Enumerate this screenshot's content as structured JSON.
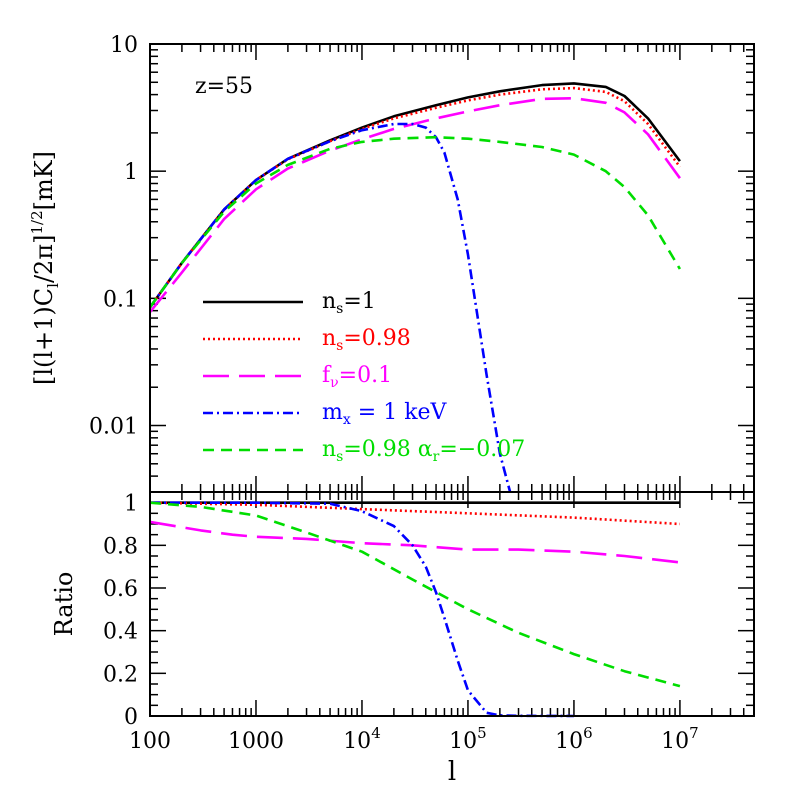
{
  "chart_data": [
    {
      "type": "line",
      "panel": "top",
      "xscale": "log",
      "yscale": "log",
      "xlim": [
        100,
        50000000
      ],
      "ylim": [
        0.003,
        10
      ],
      "ylabel": "[l(l+1)C_l/2π]^{1/2}[mK]",
      "ylabel_parts": {
        "main": "[l(l+1)C",
        "sub": "l",
        "mid": "/2π]",
        "sup": "1/2",
        "end": "[mK]"
      },
      "annotation": "z=55",
      "y_tick_labels": [
        {
          "value": 0.01,
          "label": "0.01"
        },
        {
          "value": 0.1,
          "label": "0.1"
        },
        {
          "value": 1,
          "label": "1"
        },
        {
          "value": 10,
          "label": "10"
        }
      ],
      "legend_position": "bottom-left",
      "series": [
        {
          "id": "ns1",
          "legend_base": "n",
          "legend_sub": "s",
          "legend_rest": "=1",
          "color": "#000000",
          "dash": "solid",
          "x": [
            100,
            200,
            500,
            1000,
            2000,
            5000,
            10000,
            20000,
            50000,
            100000,
            200000,
            500000,
            1000000,
            2000000,
            3000000,
            5000000,
            10000000
          ],
          "y": [
            0.085,
            0.19,
            0.5,
            0.85,
            1.25,
            1.75,
            2.2,
            2.7,
            3.3,
            3.8,
            4.25,
            4.75,
            4.9,
            4.6,
            3.9,
            2.6,
            1.2
          ]
        },
        {
          "id": "ns098",
          "legend_base": "n",
          "legend_sub": "s",
          "legend_rest": "=0.98",
          "color": "#ff0000",
          "dash": "dotted",
          "x": [
            100,
            200,
            500,
            1000,
            2000,
            5000,
            10000,
            20000,
            50000,
            100000,
            200000,
            500000,
            1000000,
            2000000,
            3000000,
            5000000,
            10000000
          ],
          "y": [
            0.085,
            0.19,
            0.5,
            0.85,
            1.24,
            1.72,
            2.15,
            2.6,
            3.15,
            3.6,
            4.0,
            4.4,
            4.5,
            4.2,
            3.55,
            2.35,
            1.08
          ]
        },
        {
          "id": "fnu",
          "legend_base": "f",
          "legend_sub": "ν",
          "legend_rest": "=0.1",
          "color": "#ff00ff",
          "dash": "longdash",
          "x": [
            100,
            200,
            500,
            1000,
            2000,
            5000,
            10000,
            20000,
            50000,
            100000,
            200000,
            500000,
            1000000,
            2000000,
            3000000,
            5000000,
            10000000
          ],
          "y": [
            0.078,
            0.16,
            0.42,
            0.72,
            1.05,
            1.45,
            1.78,
            2.15,
            2.6,
            2.95,
            3.3,
            3.7,
            3.75,
            3.45,
            2.9,
            1.95,
            0.88
          ]
        },
        {
          "id": "mx",
          "legend_base": "m",
          "legend_sub": "x",
          "legend_rest": " = 1 keV",
          "color": "#0000ff",
          "dash": "dashdot",
          "x": [
            100,
            200,
            500,
            1000,
            2000,
            5000,
            10000,
            20000,
            30000,
            40000,
            50000,
            60000,
            80000,
            100000,
            150000,
            200000,
            250000
          ],
          "y": [
            0.085,
            0.19,
            0.5,
            0.85,
            1.25,
            1.72,
            2.1,
            2.35,
            2.35,
            2.2,
            1.85,
            1.4,
            0.6,
            0.22,
            0.025,
            0.006,
            0.003
          ]
        },
        {
          "id": "running",
          "legend_base": "n",
          "legend_sub": "s",
          "legend_rest": "=0.98  α",
          "legend_sub2": "r",
          "legend_rest2": "=−0.07",
          "color": "#00dd00",
          "dash": "dashed",
          "x": [
            100,
            200,
            500,
            1000,
            2000,
            5000,
            10000,
            20000,
            50000,
            100000,
            200000,
            500000,
            1000000,
            2000000,
            3000000,
            5000000,
            10000000
          ],
          "y": [
            0.085,
            0.19,
            0.48,
            0.8,
            1.12,
            1.5,
            1.7,
            1.8,
            1.85,
            1.8,
            1.7,
            1.55,
            1.35,
            1.0,
            0.75,
            0.45,
            0.17
          ]
        }
      ]
    },
    {
      "type": "line",
      "panel": "bottom",
      "xscale": "log",
      "yscale": "linear",
      "xlim": [
        100,
        50000000
      ],
      "ylim": [
        0,
        1.05
      ],
      "xlabel": "l",
      "ylabel": "Ratio",
      "y_tick_labels": [
        {
          "value": 0,
          "label": "0"
        },
        {
          "value": 0.2,
          "label": "0.2"
        },
        {
          "value": 0.4,
          "label": "0.4"
        },
        {
          "value": 0.6,
          "label": "0.6"
        },
        {
          "value": 0.8,
          "label": "0.8"
        },
        {
          "value": 1,
          "label": "1"
        }
      ],
      "x_tick_labels": [
        {
          "value": 100,
          "label": "100"
        },
        {
          "value": 1000,
          "label": "1000"
        },
        {
          "value": 10000,
          "base": "10",
          "exp": "4"
        },
        {
          "value": 100000,
          "base": "10",
          "exp": "5"
        },
        {
          "value": 1000000,
          "base": "10",
          "exp": "6"
        },
        {
          "value": 10000000,
          "base": "10",
          "exp": "7"
        }
      ],
      "series": [
        {
          "id": "ns1",
          "color": "#000000",
          "dash": "solid",
          "x": [
            100,
            10000000
          ],
          "y": [
            1.0,
            1.0
          ]
        },
        {
          "id": "ns098",
          "color": "#ff0000",
          "dash": "dotted",
          "x": [
            100,
            1000,
            10000,
            100000,
            1000000,
            10000000
          ],
          "y": [
            1.0,
            0.99,
            0.97,
            0.95,
            0.93,
            0.9
          ]
        },
        {
          "id": "fnu",
          "color": "#ff00ff",
          "dash": "longdash",
          "x": [
            100,
            300,
            600,
            1000,
            3000,
            10000,
            30000,
            100000,
            300000,
            1000000,
            3000000,
            10000000
          ],
          "y": [
            0.91,
            0.87,
            0.85,
            0.84,
            0.83,
            0.81,
            0.8,
            0.78,
            0.78,
            0.77,
            0.75,
            0.72
          ]
        },
        {
          "id": "mx",
          "color": "#0000ff",
          "dash": "dashdot",
          "x": [
            100,
            1000,
            5000,
            10000,
            20000,
            30000,
            40000,
            50000,
            60000,
            80000,
            100000,
            150000,
            200000,
            300000,
            1000000
          ],
          "y": [
            1.0,
            1.0,
            0.995,
            0.96,
            0.89,
            0.8,
            0.7,
            0.58,
            0.46,
            0.26,
            0.12,
            0.015,
            0.003,
            0.001,
            0.0
          ]
        },
        {
          "id": "running",
          "color": "#00dd00",
          "dash": "dashed",
          "x": [
            100,
            300,
            1000,
            3000,
            10000,
            30000,
            100000,
            300000,
            1000000,
            3000000,
            10000000
          ],
          "y": [
            1.0,
            0.98,
            0.94,
            0.86,
            0.77,
            0.64,
            0.5,
            0.39,
            0.29,
            0.21,
            0.14
          ]
        }
      ]
    }
  ]
}
